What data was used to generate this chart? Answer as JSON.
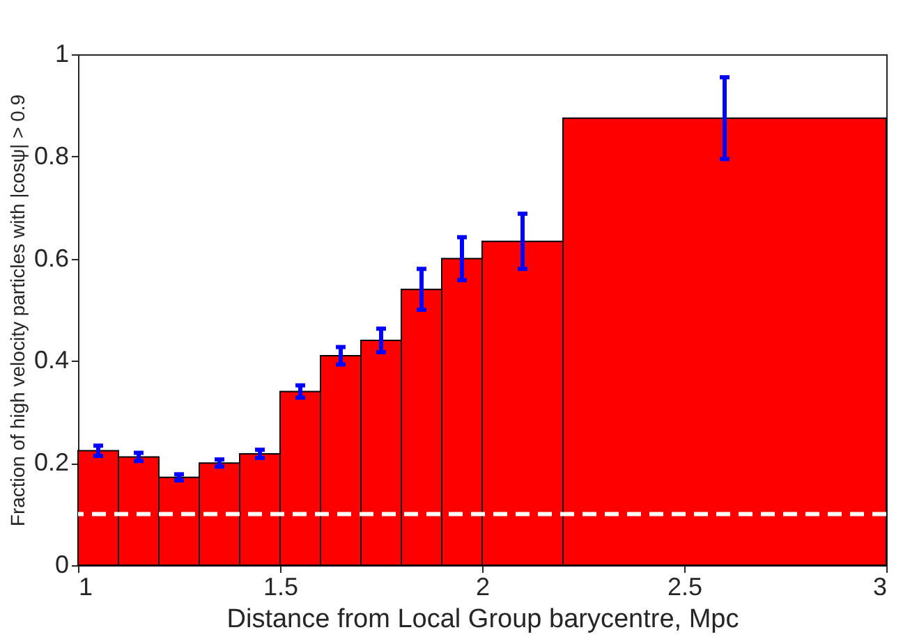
{
  "chart_data": {
    "type": "histogram",
    "xlabel": "Distance from Local Group barycentre, Mpc",
    "ylabel": "Fraction of high velocity particles with |cosψ| > 0.9",
    "bins": [
      1,
      1.1,
      1.2,
      1.3,
      1.4,
      1.5,
      1.6,
      1.7,
      1.8,
      1.9,
      2.0,
      2.2,
      3.0
    ],
    "values": [
      0.224,
      0.212,
      0.172,
      0.2,
      0.218,
      0.34,
      0.41,
      0.44,
      0.54,
      0.6,
      0.634,
      0.875
    ],
    "errors": [
      0.01,
      0.008,
      0.006,
      0.007,
      0.008,
      0.012,
      0.017,
      0.023,
      0.04,
      0.042,
      0.054,
      0.08
    ],
    "color": "#ff0000",
    "xlim": [
      1,
      3
    ],
    "ylim": [
      0,
      1
    ],
    "xticks": [
      1,
      1.5,
      2,
      2.5,
      3
    ],
    "yticks": [
      0,
      0.2,
      0.4,
      0.6,
      0.8,
      1
    ],
    "grid": false,
    "ref_lines": [
      {
        "axis": "y",
        "value": 0.1,
        "label": null,
        "color": "#ffffff",
        "line_style": "dashed"
      }
    ]
  }
}
